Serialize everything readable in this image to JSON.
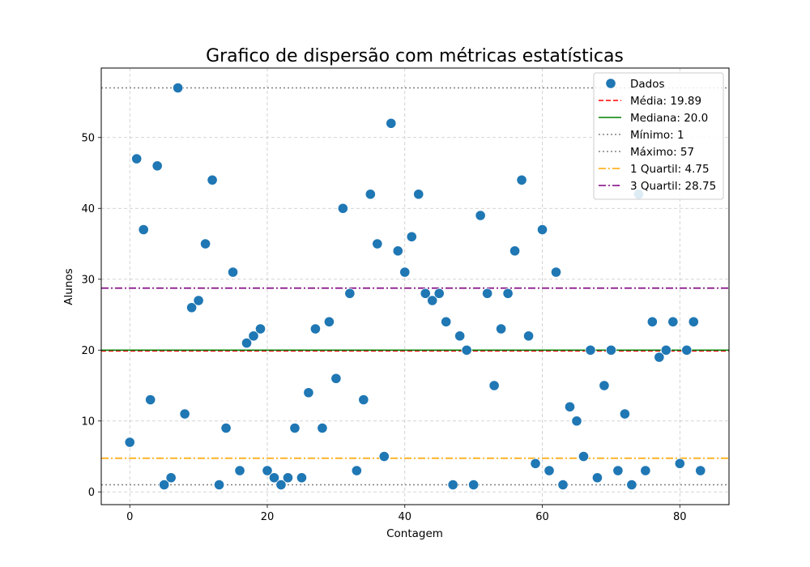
{
  "chart_data": {
    "type": "scatter",
    "title": "Grafico de dispersão com métricas estatísticas",
    "xlabel": "Contagem",
    "ylabel": "Alunos",
    "xlim": [
      -4.15,
      87.15
    ],
    "ylim": [
      -1.8,
      59.8
    ],
    "xticks": [
      0,
      20,
      40,
      60,
      80
    ],
    "yticks": [
      0,
      10,
      20,
      30,
      40,
      50
    ],
    "grid": true,
    "legend_position": "top-right",
    "series": [
      {
        "name": "Dados",
        "color": "#1f77b4",
        "x": [
          0,
          1,
          2,
          3,
          4,
          5,
          6,
          7,
          8,
          9,
          10,
          11,
          12,
          13,
          14,
          15,
          16,
          17,
          18,
          19,
          20,
          21,
          22,
          23,
          24,
          25,
          26,
          27,
          28,
          29,
          30,
          31,
          32,
          33,
          34,
          35,
          36,
          37,
          38,
          39,
          40,
          41,
          42,
          43,
          44,
          45,
          46,
          47,
          48,
          49,
          50,
          51,
          52,
          53,
          54,
          55,
          56,
          57,
          58,
          59,
          60,
          61,
          62,
          63,
          64,
          65,
          66,
          67,
          68,
          69,
          70,
          71,
          72,
          73,
          74,
          75,
          76,
          77,
          78,
          79,
          80,
          81,
          82,
          83
        ],
        "y": [
          7,
          47,
          37,
          13,
          46,
          1,
          2,
          57,
          11,
          26,
          27,
          35,
          44,
          1,
          9,
          31,
          3,
          21,
          22,
          23,
          3,
          2,
          1,
          2,
          9,
          2,
          14,
          23,
          9,
          24,
          16,
          40,
          28,
          3,
          13,
          42,
          35,
          5,
          52,
          34,
          31,
          36,
          42,
          28,
          27,
          28,
          24,
          1,
          22,
          20,
          1,
          39,
          28,
          15,
          23,
          28,
          34,
          44,
          22,
          4,
          37,
          3,
          31,
          1,
          12,
          10,
          5,
          20,
          2,
          15,
          20,
          3,
          11,
          1,
          42,
          3,
          24,
          19,
          20,
          24,
          4,
          20,
          24,
          3
        ]
      }
    ],
    "reference_lines": [
      {
        "label": "Média: 19.89",
        "value": 19.89,
        "color": "#ff0000",
        "style": "dashed"
      },
      {
        "label": "Mediana: 20.0",
        "value": 20.0,
        "color": "#008000",
        "style": "solid"
      },
      {
        "label": "Mínimo: 1",
        "value": 1,
        "color": "#808080",
        "style": "dotted"
      },
      {
        "label": "Máximo: 57",
        "value": 57,
        "color": "#808080",
        "style": "dotted"
      },
      {
        "label": "1 Quartil: 4.75",
        "value": 4.75,
        "color": "#ffa500",
        "style": "dashdot"
      },
      {
        "label": "3 Quartil: 28.75",
        "value": 28.75,
        "color": "#800080",
        "style": "dashdot"
      }
    ]
  }
}
